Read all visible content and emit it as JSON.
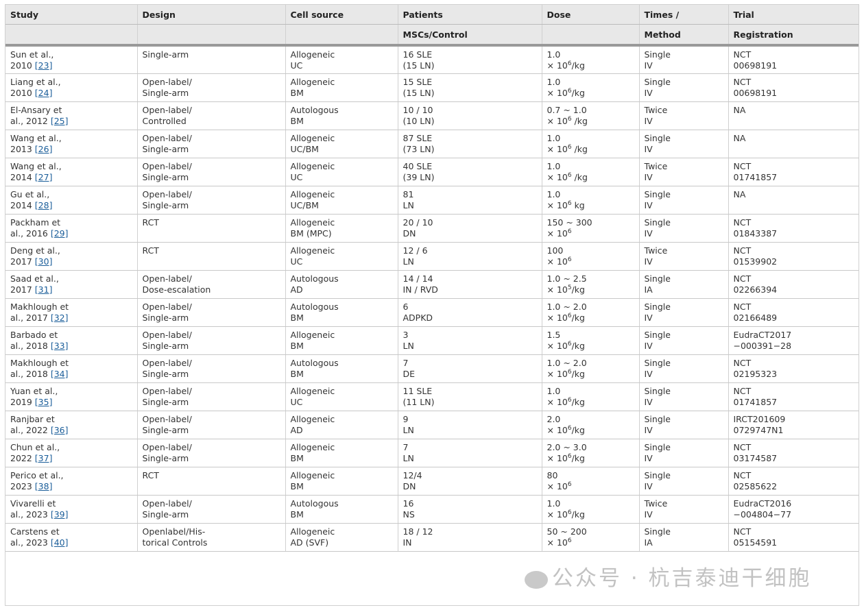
{
  "headers": {
    "row1": [
      "Study",
      "Design",
      "Cell source",
      "Patients",
      "Dose",
      "Times /",
      "Trial"
    ],
    "row2": [
      "",
      "",
      "",
      "MSCs/Control",
      "",
      "Method",
      "Registration"
    ]
  },
  "rows": [
    {
      "study1": "Sun et al.,",
      "study2": "2010 ",
      "ref": "[23]",
      "design1": "Single-arm",
      "design2": "",
      "cell1": "Allogeneic",
      "cell2": "UC",
      "pat1": "16 SLE",
      "pat2": "(15 LN)",
      "dose1": "1.0",
      "dose_pre": " × 10",
      "dose_exp": "6",
      "dose_unit": "/kg",
      "times1": "Single",
      "times2": "IV",
      "trial1": "NCT",
      "trial2": "00698191"
    },
    {
      "study1": "Liang et al.,",
      "study2": "2010 ",
      "ref": "[24]",
      "design1": "Open-label/",
      "design2": "Single-arm",
      "cell1": "Allogeneic",
      "cell2": "BM",
      "pat1": "15 SLE",
      "pat2": "(15 LN)",
      "dose1": "1.0",
      "dose_pre": " × 10",
      "dose_exp": "6",
      "dose_unit": "/kg",
      "times1": "Single",
      "times2": "IV",
      "trial1": "NCT",
      "trial2": "00698191"
    },
    {
      "study1": "El-Ansary et",
      "study2": "al., 2012 ",
      "ref": "[25]",
      "design1": "Open-label/",
      "design2": "Controlled",
      "cell1": "Autologous",
      "cell2": "BM",
      "pat1": "10 / 10",
      "pat2": "(10 LN)",
      "dose1": "0.7 ~ 1.0",
      "dose_pre": " × 10",
      "dose_exp": "6",
      "dose_unit": " /kg",
      "times1": "Twice",
      "times2": "IV",
      "trial1": "NA",
      "trial2": ""
    },
    {
      "study1": "Wang et al.,",
      "study2": "2013 ",
      "ref": "[26]",
      "design1": "Open-label/",
      "design2": "Single-arm",
      "cell1": "Allogeneic",
      "cell2": "UC/BM",
      "pat1": "87 SLE",
      "pat2": "(73 LN)",
      "dose1": "1.0",
      "dose_pre": " × 10",
      "dose_exp": "6",
      "dose_unit": " /kg",
      "times1": "Single",
      "times2": "IV",
      "trial1": "NA",
      "trial2": ""
    },
    {
      "study1": "Wang et al.,",
      "study2": "2014 ",
      "ref": "[27]",
      "design1": "Open-label/",
      "design2": "Single-arm",
      "cell1": "Allogeneic",
      "cell2": "UC",
      "pat1": "40 SLE",
      "pat2": "(39 LN)",
      "dose1": "1.0",
      "dose_pre": " × 10",
      "dose_exp": "6",
      "dose_unit": " /kg",
      "times1": "Twice",
      "times2": "IV",
      "trial1": "NCT",
      "trial2": "01741857"
    },
    {
      "study1": "Gu et al.,",
      "study2": "2014 ",
      "ref": "[28]",
      "design1": "Open-label/",
      "design2": "Single-arm",
      "cell1": "Allogeneic",
      "cell2": "UC/BM",
      "pat1": "81",
      "pat2": "LN",
      "dose1": "1.0",
      "dose_pre": " × 10",
      "dose_exp": "6",
      "dose_unit": " kg",
      "times1": "Single",
      "times2": "IV",
      "trial1": "NA",
      "trial2": ""
    },
    {
      "study1": "Packham et",
      "study2": "al., 2016 ",
      "ref": "[29]",
      "design1": "RCT",
      "design2": "",
      "cell1": "Allogeneic",
      "cell2": "BM (MPC)",
      "pat1": "20 / 10",
      "pat2": "DN",
      "dose1": "150 ~ 300",
      "dose_pre": " × 10",
      "dose_exp": "6",
      "dose_unit": "",
      "times1": "Single",
      "times2": "IV",
      "trial1": "NCT",
      "trial2": "01843387"
    },
    {
      "study1": "Deng et al.,",
      "study2": "2017 ",
      "ref": "[30]",
      "design1": "RCT",
      "design2": "",
      "cell1": "Allogeneic",
      "cell2": "UC",
      "pat1": "12 / 6",
      "pat2": "LN",
      "dose1": "100",
      "dose_pre": " × 10",
      "dose_exp": "6",
      "dose_unit": "",
      "times1": "Twice",
      "times2": "IV",
      "trial1": "NCT",
      "trial2": "01539902"
    },
    {
      "study1": "Saad et al.,",
      "study2": "2017 ",
      "ref": "[31]",
      "design1": "Open-label/",
      "design2": "Dose-escalation",
      "cell1": "Autologous",
      "cell2": "AD",
      "pat1": "14 / 14",
      "pat2": "IN / RVD",
      "dose1": "1.0 ~ 2.5",
      "dose_pre": " × 10",
      "dose_exp": "5",
      "dose_unit": "/kg",
      "times1": "Single",
      "times2": "IA",
      "trial1": "NCT",
      "trial2": "02266394"
    },
    {
      "study1": "Makhlough et",
      "study2": "al., 2017 ",
      "ref": "[32]",
      "design1": "Open-label/",
      "design2": "Single-arm",
      "cell1": "Autologous",
      "cell2": "BM",
      "pat1": "6",
      "pat2": "ADPKD",
      "dose1": "1.0 ~ 2.0",
      "dose_pre": " × 10",
      "dose_exp": "6",
      "dose_unit": "/kg",
      "times1": "Single",
      "times2": "IV",
      "trial1": "NCT",
      "trial2": "02166489"
    },
    {
      "study1": "Barbado et",
      "study2": "al., 2018 ",
      "ref": "[33]",
      "design1": "Open-label/",
      "design2": "Single-arm",
      "cell1": "Allogeneic",
      "cell2": "BM",
      "pat1": "3",
      "pat2": "LN",
      "dose1": "1.5",
      "dose_pre": " × 10",
      "dose_exp": "6",
      "dose_unit": "/kg",
      "times1": "Single",
      "times2": "IV",
      "trial1": "EudraCT2017",
      "trial2": "−000391−28"
    },
    {
      "study1": "Makhlough et",
      "study2": "al., 2018 ",
      "ref": "[34]",
      "design1": "Open-label/",
      "design2": "Single-arm",
      "cell1": "Autologous",
      "cell2": "BM",
      "pat1": "7",
      "pat2": "DE",
      "dose1": "1.0 ~ 2.0",
      "dose_pre": " × 10",
      "dose_exp": "6",
      "dose_unit": "/kg",
      "times1": "Single",
      "times2": "IV",
      "trial1": "NCT",
      "trial2": "02195323"
    },
    {
      "study1": "Yuan et al.,",
      "study2": "2019 ",
      "ref": "[35]",
      "design1": "Open-label/",
      "design2": "Single-arm",
      "cell1": "Allogeneic",
      "cell2": "UC",
      "pat1": "11 SLE",
      "pat2": "(11 LN)",
      "dose1": "1.0",
      "dose_pre": " × 10",
      "dose_exp": "6",
      "dose_unit": "/kg",
      "times1": "Single",
      "times2": "IV",
      "trial1": "NCT",
      "trial2": "01741857"
    },
    {
      "study1": "Ranjbar et",
      "study2": "al., 2022 ",
      "ref": "[36]",
      "design1": "Open-label/",
      "design2": "Single-arm",
      "cell1": "Allogeneic",
      "cell2": "AD",
      "pat1": "9",
      "pat2": "LN",
      "dose1": "2.0",
      "dose_pre": " × 10",
      "dose_exp": "6",
      "dose_unit": "/kg",
      "times1": "Single",
      "times2": "IV",
      "trial1": "IRCT201609",
      "trial2": "0729747N1"
    },
    {
      "study1": "Chun et al.,",
      "study2": "2022 ",
      "ref": "[37]",
      "design1": "Open-label/",
      "design2": "Single-arm",
      "cell1": "Allogeneic",
      "cell2": "BM",
      "pat1": "7",
      "pat2": "LN",
      "dose1": "2.0 ~ 3.0",
      "dose_pre": " × 10",
      "dose_exp": "6",
      "dose_unit": "/kg",
      "times1": "Single",
      "times2": "IV",
      "trial1": "NCT",
      "trial2": "03174587"
    },
    {
      "study1": "Perico et al.,",
      "study2": "2023 ",
      "ref": "[38]",
      "design1": "RCT",
      "design2": "",
      "cell1": "Allogeneic",
      "cell2": "BM",
      "pat1": "12/4",
      "pat2": "DN",
      "dose1": "80",
      "dose_pre": " × 10",
      "dose_exp": "6",
      "dose_unit": "",
      "times1": "Single",
      "times2": "IV",
      "trial1": "NCT",
      "trial2": "02585622"
    },
    {
      "study1": "Vivarelli et",
      "study2": "al., 2023 ",
      "ref": "[39]",
      "design1": "Open-label/",
      "design2": "Single-arm",
      "cell1": "Autologous",
      "cell2": "BM",
      "pat1": "16",
      "pat2": "NS",
      "dose1": "1.0",
      "dose_pre": " × 10",
      "dose_exp": "6",
      "dose_unit": "/kg",
      "times1": "Twice",
      "times2": "IV",
      "trial1": "EudraCT2016",
      "trial2": "−004804−77"
    },
    {
      "study1": "Carstens et",
      "study2": "al., 2023 ",
      "ref": "[40]",
      "design1": "Openlabel/His-",
      "design2": "torical Controls",
      "cell1": "Allogeneic",
      "cell2": "AD (SVF)",
      "pat1": "18 / 12",
      "pat2": "IN",
      "dose1": "50 ~ 200",
      "dose_pre": " × 10",
      "dose_exp": "6",
      "dose_unit": "",
      "times1": "Single",
      "times2": "IA",
      "trial1": "NCT",
      "trial2": "05154591"
    }
  ],
  "watermark": "公众号 · 杭吉泰迪干细胞",
  "colors": {
    "link": "#1a5d99",
    "header_bg": "#e8e8e8"
  }
}
